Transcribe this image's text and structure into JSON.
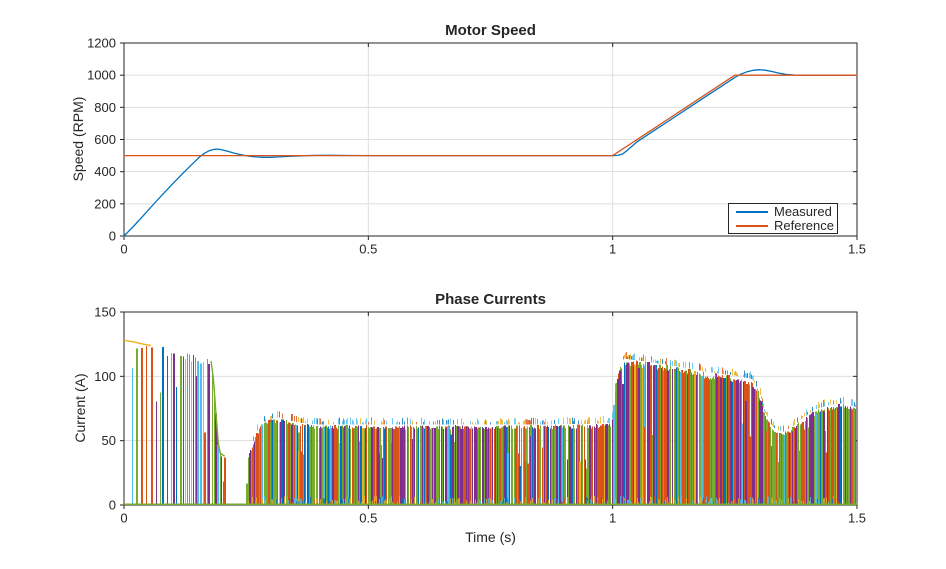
{
  "figure": {
    "background": "#ffffff",
    "axis_color": "#262626",
    "grid_color": "#dedede",
    "text_color": "#262626"
  },
  "chart_data": [
    {
      "id": "motor-speed",
      "type": "line",
      "title": "Motor Speed",
      "xlabel": "",
      "ylabel": "Speed (RPM)",
      "xlim": [
        0,
        1.5
      ],
      "ylim": [
        0,
        1200
      ],
      "xticks": [
        0,
        0.5,
        1,
        1.5
      ],
      "xtick_labels": [
        "0",
        "0.5",
        "1",
        "1.5"
      ],
      "yticks": [
        0,
        200,
        400,
        600,
        800,
        1000,
        1200
      ],
      "ytick_labels": [
        "0",
        "200",
        "400",
        "600",
        "800",
        "1000",
        "1200"
      ],
      "grid": true,
      "legend": {
        "position": "southeast"
      },
      "series": [
        {
          "name": "Measured",
          "color": "#0072BD",
          "width": 1.3,
          "points": [
            [
              0,
              0
            ],
            [
              0.02,
              62
            ],
            [
              0.04,
              128
            ],
            [
              0.06,
              196
            ],
            [
              0.08,
              262
            ],
            [
              0.1,
              326
            ],
            [
              0.12,
              388
            ],
            [
              0.14,
              448
            ],
            [
              0.155,
              492
            ],
            [
              0.165,
              515
            ],
            [
              0.175,
              531
            ],
            [
              0.185,
              539
            ],
            [
              0.193,
              540
            ],
            [
              0.202,
              535
            ],
            [
              0.213,
              526
            ],
            [
              0.226,
              515
            ],
            [
              0.24,
              505
            ],
            [
              0.255,
              497
            ],
            [
              0.27,
              492
            ],
            [
              0.285,
              489.5
            ],
            [
              0.3,
              489.5
            ],
            [
              0.315,
              491.5
            ],
            [
              0.33,
              494
            ],
            [
              0.35,
              497
            ],
            [
              0.37,
              499.5
            ],
            [
              0.39,
              501
            ],
            [
              0.42,
              501.5
            ],
            [
              0.46,
              500.5
            ],
            [
              0.52,
              500
            ],
            [
              0.6,
              500
            ],
            [
              0.7,
              500
            ],
            [
              0.85,
              500
            ],
            [
              1.0,
              500
            ],
            [
              1.01,
              501
            ],
            [
              1.02,
              509
            ],
            [
              1.03,
              533
            ],
            [
              1.05,
              586
            ],
            [
              1.07,
              626
            ],
            [
              1.09,
              666
            ],
            [
              1.11,
              706
            ],
            [
              1.13,
              746
            ],
            [
              1.15,
              786
            ],
            [
              1.17,
              826
            ],
            [
              1.19,
              866
            ],
            [
              1.21,
              906
            ],
            [
              1.23,
              946
            ],
            [
              1.25,
              986
            ],
            [
              1.262,
              1006
            ],
            [
              1.275,
              1021
            ],
            [
              1.288,
              1030
            ],
            [
              1.3,
              1034
            ],
            [
              1.312,
              1031
            ],
            [
              1.326,
              1023
            ],
            [
              1.34,
              1013
            ],
            [
              1.355,
              1005
            ],
            [
              1.37,
              1001
            ],
            [
              1.388,
              1000
            ],
            [
              1.43,
              1000
            ],
            [
              1.47,
              1000
            ],
            [
              1.5,
              1000
            ]
          ]
        },
        {
          "name": "Reference",
          "color": "#D95319",
          "width": 1.3,
          "points": [
            [
              0,
              500
            ],
            [
              1.0,
              500
            ],
            [
              1.25,
              1000
            ],
            [
              1.5,
              1000
            ]
          ]
        }
      ]
    },
    {
      "id": "phase-currents",
      "type": "line",
      "title": "Phase Currents",
      "xlabel": "Time (s)",
      "ylabel": "Current (A)",
      "xlim": [
        0,
        1.5
      ],
      "ylim": [
        0,
        150
      ],
      "xticks": [
        0,
        0.5,
        1,
        1.5
      ],
      "xtick_labels": [
        "0",
        "0.5",
        "1",
        "1.5"
      ],
      "yticks": [
        0,
        50,
        100,
        150
      ],
      "ytick_labels": [
        "0",
        "50",
        "100",
        "150"
      ],
      "grid": true,
      "note": "Chopped multi-phase inverter currents drawn as dense colored vertical strokes; values below give the upper envelope in amperes.",
      "envelope": [
        [
          0,
          128
        ],
        [
          0.03,
          125.5
        ],
        [
          0.06,
          123.5
        ],
        [
          0.09,
          121
        ],
        [
          0.12,
          118.5
        ],
        [
          0.15,
          115.5
        ],
        [
          0.172,
          113
        ],
        [
          0.178,
          112
        ],
        [
          0.183,
          98
        ],
        [
          0.188,
          72
        ],
        [
          0.193,
          48
        ],
        [
          0.197,
          40
        ],
        [
          0.206,
          38
        ],
        [
          0.208,
          0
        ],
        [
          0.251,
          0
        ],
        [
          0.254,
          38
        ],
        [
          0.26,
          45
        ],
        [
          0.268,
          54
        ],
        [
          0.276,
          60
        ],
        [
          0.285,
          64
        ],
        [
          0.3,
          66
        ],
        [
          0.315,
          67
        ],
        [
          0.335,
          65
        ],
        [
          0.36,
          63
        ],
        [
          0.4,
          61.5
        ],
        [
          0.5,
          61.5
        ],
        [
          0.65,
          61.5
        ],
        [
          0.8,
          61.5
        ],
        [
          0.95,
          62
        ],
        [
          0.995,
          63
        ],
        [
          1.0,
          68
        ],
        [
          1.004,
          86
        ],
        [
          1.009,
          101
        ],
        [
          1.014,
          109
        ],
        [
          1.022,
          113
        ],
        [
          1.035,
          112
        ],
        [
          1.06,
          111
        ],
        [
          1.1,
          108.5
        ],
        [
          1.15,
          105.5
        ],
        [
          1.2,
          102
        ],
        [
          1.25,
          99.5
        ],
        [
          1.285,
          97
        ],
        [
          1.298,
          88
        ],
        [
          1.31,
          72
        ],
        [
          1.322,
          62
        ],
        [
          1.335,
          57
        ],
        [
          1.35,
          56
        ],
        [
          1.365,
          59
        ],
        [
          1.38,
          64
        ],
        [
          1.4,
          70
        ],
        [
          1.42,
          74
        ],
        [
          1.445,
          77
        ],
        [
          1.47,
          78
        ],
        [
          1.5,
          75
        ]
      ],
      "leader_curve": {
        "color": "#EDB120",
        "points": [
          [
            0,
            128
          ],
          [
            0.02,
            126.8
          ],
          [
            0.04,
            125
          ],
          [
            0.055,
            124
          ]
        ]
      },
      "drop_edge": {
        "color": "#77AC30",
        "points": [
          [
            0.178,
            112
          ],
          [
            0.183,
            98
          ],
          [
            0.188,
            72
          ],
          [
            0.193,
            48
          ],
          [
            0.197,
            40
          ],
          [
            0.206,
            38
          ]
        ]
      },
      "baseline_color": "#77AC30",
      "palettes": {
        "sparse": [
          [
            "#7E2F8E",
            22
          ],
          [
            "#77AC30",
            22
          ],
          [
            "#D95319",
            20
          ],
          [
            "#4DBEEE",
            14
          ],
          [
            "#0072BD",
            12
          ],
          [
            "#EDB120",
            10
          ]
        ],
        "dense": [
          [
            "#77AC30",
            38
          ],
          [
            "#D95319",
            30
          ],
          [
            "#7E2F8E",
            20
          ],
          [
            "#0072BD",
            6
          ],
          [
            "#4DBEEE",
            4
          ],
          [
            "#EDB120",
            2
          ]
        ],
        "fringe": [
          [
            "#4DBEEE",
            35
          ],
          [
            "#EDB120",
            30
          ],
          [
            "#0072BD",
            20
          ],
          [
            "#D95319",
            15
          ]
        ]
      },
      "regions": [
        {
          "from": 0.012,
          "to": 0.055,
          "step": 0.0105,
          "jit": 0.004,
          "palette": "sparse",
          "fringe": false,
          "wide": 0.3,
          "short_p": 0.18
        },
        {
          "from": 0.055,
          "to": 0.115,
          "step": 0.0065,
          "jit": 0.002,
          "palette": "sparse",
          "fringe": false,
          "wide": 0.3,
          "short_p": 0.18
        },
        {
          "from": 0.115,
          "to": 0.178,
          "step": 0.0042,
          "jit": 0.0012,
          "palette": "sparse",
          "fringe": false,
          "wide": 0.35,
          "short_p": 0.16
        },
        {
          "from": 0.18,
          "to": 0.2065,
          "step": 0.0028,
          "jit": 0.0008,
          "palette": "sparse",
          "fringe": false,
          "wide": 0.35,
          "short_p": 0.1
        },
        {
          "from": 0.252,
          "to": 0.36,
          "step": 0.0021,
          "jit": 0.0007,
          "palette": "dense",
          "fringe": true,
          "wide": 0.4,
          "short_p": 0.08
        },
        {
          "from": 0.36,
          "to": 1.0,
          "step": 0.0023,
          "jit": 0.0009,
          "palette": "dense",
          "fringe": true,
          "wide": 0.4,
          "short_p": 0.08
        },
        {
          "from": 1.0,
          "to": 1.4995,
          "step": 0.002,
          "jit": 0.0006,
          "palette": "dense",
          "fringe": true,
          "wide": 0.45,
          "short_p": 0.07
        }
      ]
    }
  ]
}
